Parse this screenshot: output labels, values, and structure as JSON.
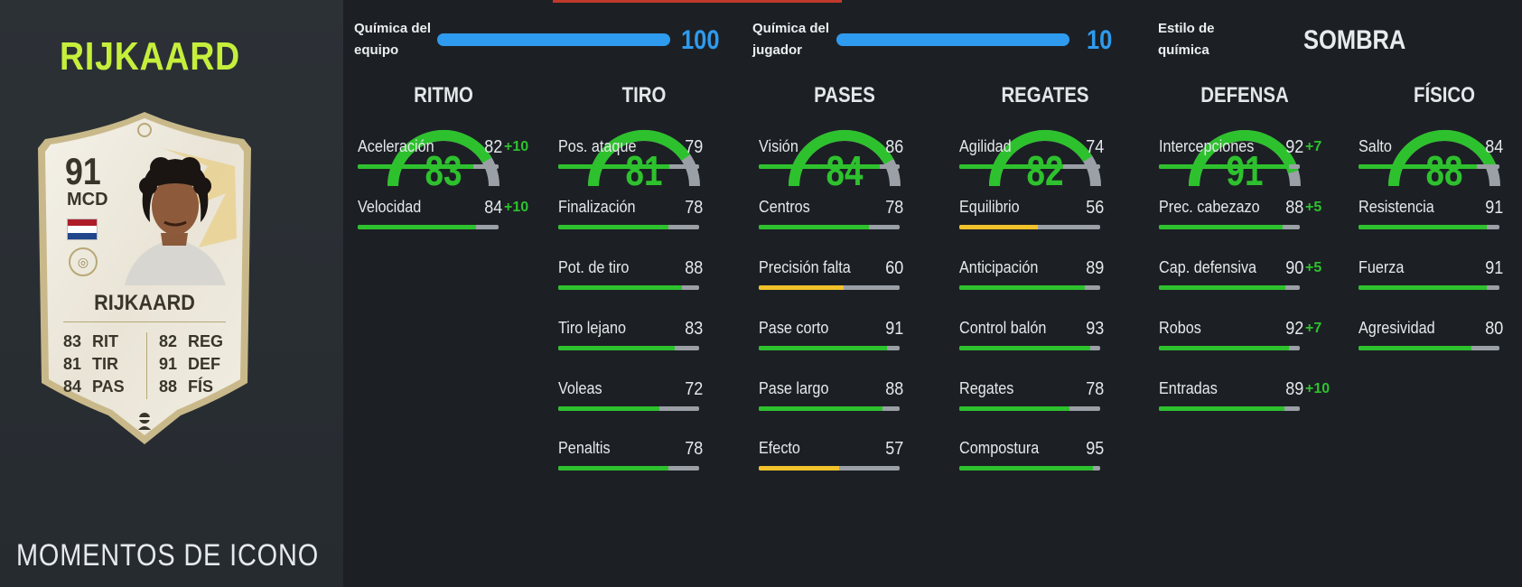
{
  "player": {
    "name": "RIJKAARD",
    "card_type": "MOMENTOS DE ICONO",
    "card": {
      "rating": "91",
      "position": "MCD",
      "name": "RIJKAARD",
      "left_stats": [
        {
          "value": "83",
          "label": "RIT"
        },
        {
          "value": "81",
          "label": "TIR"
        },
        {
          "value": "84",
          "label": "PAS"
        }
      ],
      "right_stats": [
        {
          "value": "82",
          "label": "REG"
        },
        {
          "value": "91",
          "label": "DEF"
        },
        {
          "value": "88",
          "label": "FÍS"
        }
      ],
      "flag_colors": [
        "#ae1c28",
        "#ffffff",
        "#21468b"
      ]
    }
  },
  "chemistry": {
    "team_label_line1": "Química del",
    "team_label_line2": "equipo",
    "team_value": "100",
    "team_fraction": 1.0,
    "player_label_line1": "Química del",
    "player_label_line2": "jugador",
    "player_value": "10",
    "player_fraction": 1.0,
    "style_label_line1": "Estilo de",
    "style_label_line2": "química",
    "style_value": "SOMBRA"
  },
  "colors": {
    "accent_green": "#2ec12e",
    "accent_blue": "#2f9bee",
    "accent_yellow": "#f2c22b",
    "name_lime": "#c6ef3c"
  },
  "categories": [
    {
      "name": "RITMO",
      "value": "83",
      "stats": [
        {
          "label": "Aceleración",
          "value": "82",
          "bonus": "+10",
          "color": "green"
        },
        {
          "label": "Velocidad",
          "value": "84",
          "bonus": "+10",
          "color": "green"
        }
      ]
    },
    {
      "name": "TIRO",
      "value": "81",
      "stats": [
        {
          "label": "Pos. ataque",
          "value": "79",
          "bonus": "",
          "color": "green"
        },
        {
          "label": "Finalización",
          "value": "78",
          "bonus": "",
          "color": "green"
        },
        {
          "label": "Pot. de tiro",
          "value": "88",
          "bonus": "",
          "color": "green"
        },
        {
          "label": "Tiro lejano",
          "value": "83",
          "bonus": "",
          "color": "green"
        },
        {
          "label": "Voleas",
          "value": "72",
          "bonus": "",
          "color": "green"
        },
        {
          "label": "Penaltis",
          "value": "78",
          "bonus": "",
          "color": "green"
        }
      ]
    },
    {
      "name": "PASES",
      "value": "84",
      "stats": [
        {
          "label": "Visión",
          "value": "86",
          "bonus": "",
          "color": "green"
        },
        {
          "label": "Centros",
          "value": "78",
          "bonus": "",
          "color": "green"
        },
        {
          "label": "Precisión falta",
          "value": "60",
          "bonus": "",
          "color": "yellow"
        },
        {
          "label": "Pase corto",
          "value": "91",
          "bonus": "",
          "color": "green"
        },
        {
          "label": "Pase largo",
          "value": "88",
          "bonus": "",
          "color": "green"
        },
        {
          "label": "Efecto",
          "value": "57",
          "bonus": "",
          "color": "yellow"
        }
      ]
    },
    {
      "name": "REGATES",
      "value": "82",
      "stats": [
        {
          "label": "Agilidad",
          "value": "74",
          "bonus": "",
          "color": "green"
        },
        {
          "label": "Equilibrio",
          "value": "56",
          "bonus": "",
          "color": "yellow"
        },
        {
          "label": "Anticipación",
          "value": "89",
          "bonus": "",
          "color": "green"
        },
        {
          "label": "Control balón",
          "value": "93",
          "bonus": "",
          "color": "green"
        },
        {
          "label": "Regates",
          "value": "78",
          "bonus": "",
          "color": "green"
        },
        {
          "label": "Compostura",
          "value": "95",
          "bonus": "",
          "color": "green"
        }
      ]
    },
    {
      "name": "DEFENSA",
      "value": "91",
      "stats": [
        {
          "label": "Intercepciones",
          "value": "92",
          "bonus": "+7",
          "color": "green"
        },
        {
          "label": "Prec. cabezazo",
          "value": "88",
          "bonus": "+5",
          "color": "green"
        },
        {
          "label": "Cap. defensiva",
          "value": "90",
          "bonus": "+5",
          "color": "green"
        },
        {
          "label": "Robos",
          "value": "92",
          "bonus": "+7",
          "color": "green"
        },
        {
          "label": "Entradas",
          "value": "89",
          "bonus": "+10",
          "color": "green"
        }
      ]
    },
    {
      "name": "FÍSICO",
      "value": "88",
      "stats": [
        {
          "label": "Salto",
          "value": "84",
          "bonus": "",
          "color": "green"
        },
        {
          "label": "Resistencia",
          "value": "91",
          "bonus": "",
          "color": "green"
        },
        {
          "label": "Fuerza",
          "value": "91",
          "bonus": "",
          "color": "green"
        },
        {
          "label": "Agresividad",
          "value": "80",
          "bonus": "",
          "color": "green"
        }
      ]
    }
  ]
}
